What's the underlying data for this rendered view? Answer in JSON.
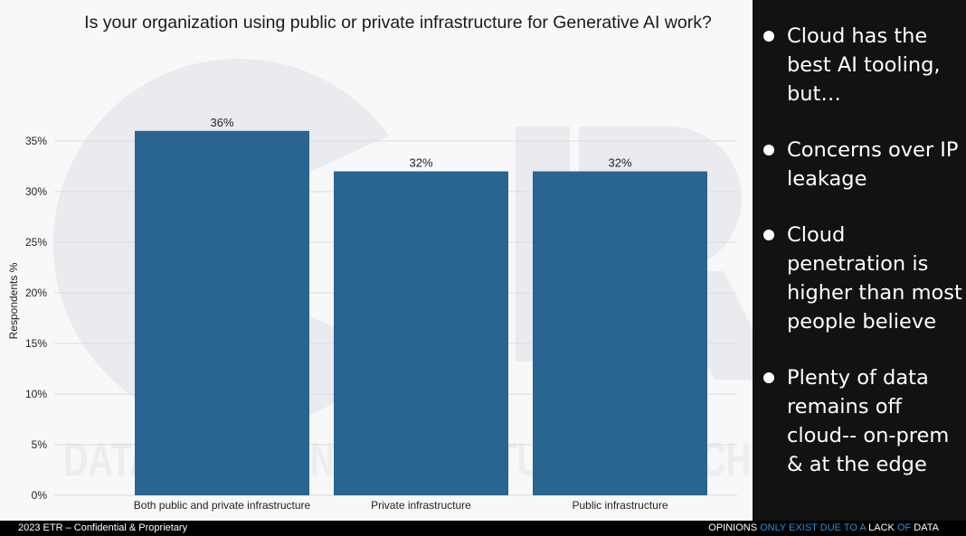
{
  "watermark": {
    "text": "DATA IS SHAPING THE FUTURE OF TECH"
  },
  "chart_data": {
    "type": "bar",
    "title": "Is your organization using public or private infrastructure for Generative AI work?",
    "ylabel": "Respondents %",
    "xlabel": "",
    "categories": [
      "Both public and private infrastructure",
      "Private infrastructure",
      "Public infrastructure"
    ],
    "values": [
      36,
      32,
      32
    ],
    "data_labels": [
      "36%",
      "32%",
      "32%"
    ],
    "y_ticks": [
      0,
      5,
      10,
      15,
      20,
      25,
      30,
      35
    ],
    "y_tick_labels": [
      "0%",
      "5%",
      "10%",
      "15%",
      "20%",
      "25%",
      "30%",
      "35%"
    ],
    "ylim": [
      0,
      37.5
    ],
    "grid": true,
    "bar_color": "#2a6491"
  },
  "notes": [
    {
      "text": "Cloud has the best AI tooling, but…"
    },
    {
      "text": "Concerns over IP leakage"
    },
    {
      "text": "Cloud penetration is higher than most people believe"
    },
    {
      "text": "Plenty of data remains off cloud-- on-prem & at the edge"
    }
  ],
  "footer": {
    "left": "2023 ETR – Confidential & Proprietary",
    "right_parts": [
      {
        "text": "OPINIONS ",
        "hl": false
      },
      {
        "text": "ONLY EXIST DUE TO A ",
        "hl": true
      },
      {
        "text": "LACK ",
        "hl": false
      },
      {
        "text": "OF",
        "hl": true
      },
      {
        "text": " DATA",
        "hl": false
      }
    ]
  },
  "colors": {
    "accent": "#2f8fd0",
    "panel_dark": "#121212",
    "chart_bg": "#f8f8f8"
  }
}
